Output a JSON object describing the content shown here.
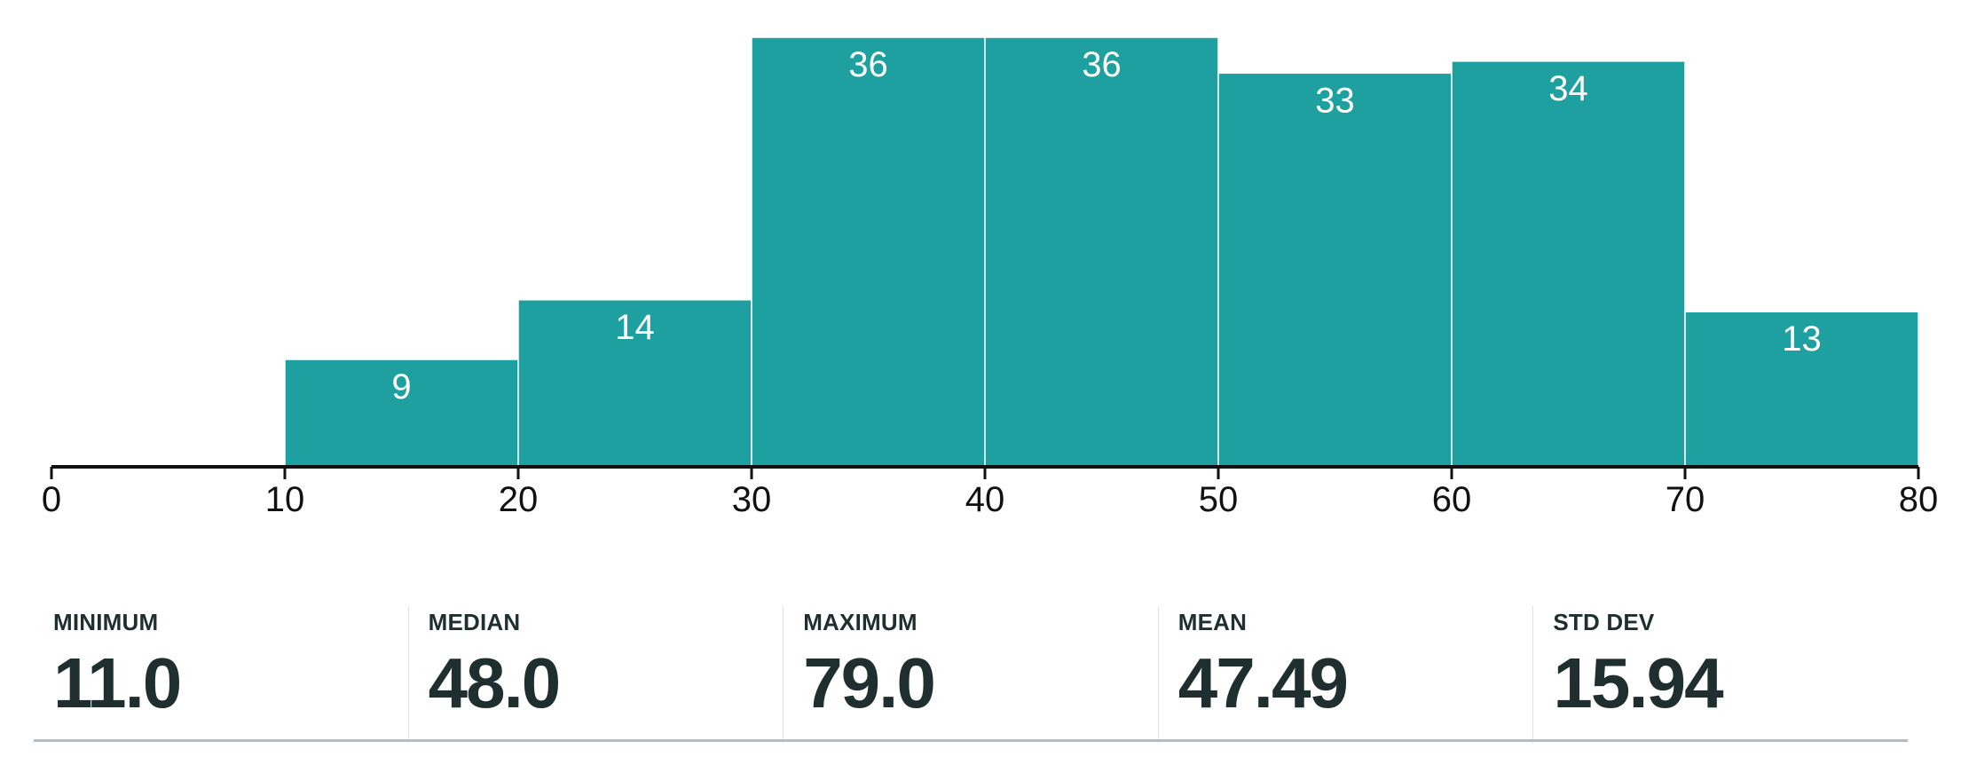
{
  "chart_data": {
    "type": "bar",
    "subtype": "histogram",
    "bins": [
      {
        "start": 10,
        "end": 20,
        "count": 9
      },
      {
        "start": 20,
        "end": 30,
        "count": 14
      },
      {
        "start": 30,
        "end": 40,
        "count": 36
      },
      {
        "start": 40,
        "end": 50,
        "count": 36
      },
      {
        "start": 50,
        "end": 60,
        "count": 33
      },
      {
        "start": 60,
        "end": 70,
        "count": 34
      },
      {
        "start": 70,
        "end": 80,
        "count": 13
      }
    ],
    "x_ticks": [
      0,
      10,
      20,
      30,
      40,
      50,
      60,
      70,
      80
    ],
    "xlim": [
      0,
      80
    ],
    "ylim": [
      0,
      36
    ],
    "grid": false,
    "bar_color": "#1fa0a0",
    "axis_color": "#111111"
  },
  "stats": [
    {
      "label": "MINIMUM",
      "value": "11.0"
    },
    {
      "label": "MEDIAN",
      "value": "48.0"
    },
    {
      "label": "MAXIMUM",
      "value": "79.0"
    },
    {
      "label": "MEAN",
      "value": "47.49"
    },
    {
      "label": "STD DEV",
      "value": "15.94"
    }
  ]
}
